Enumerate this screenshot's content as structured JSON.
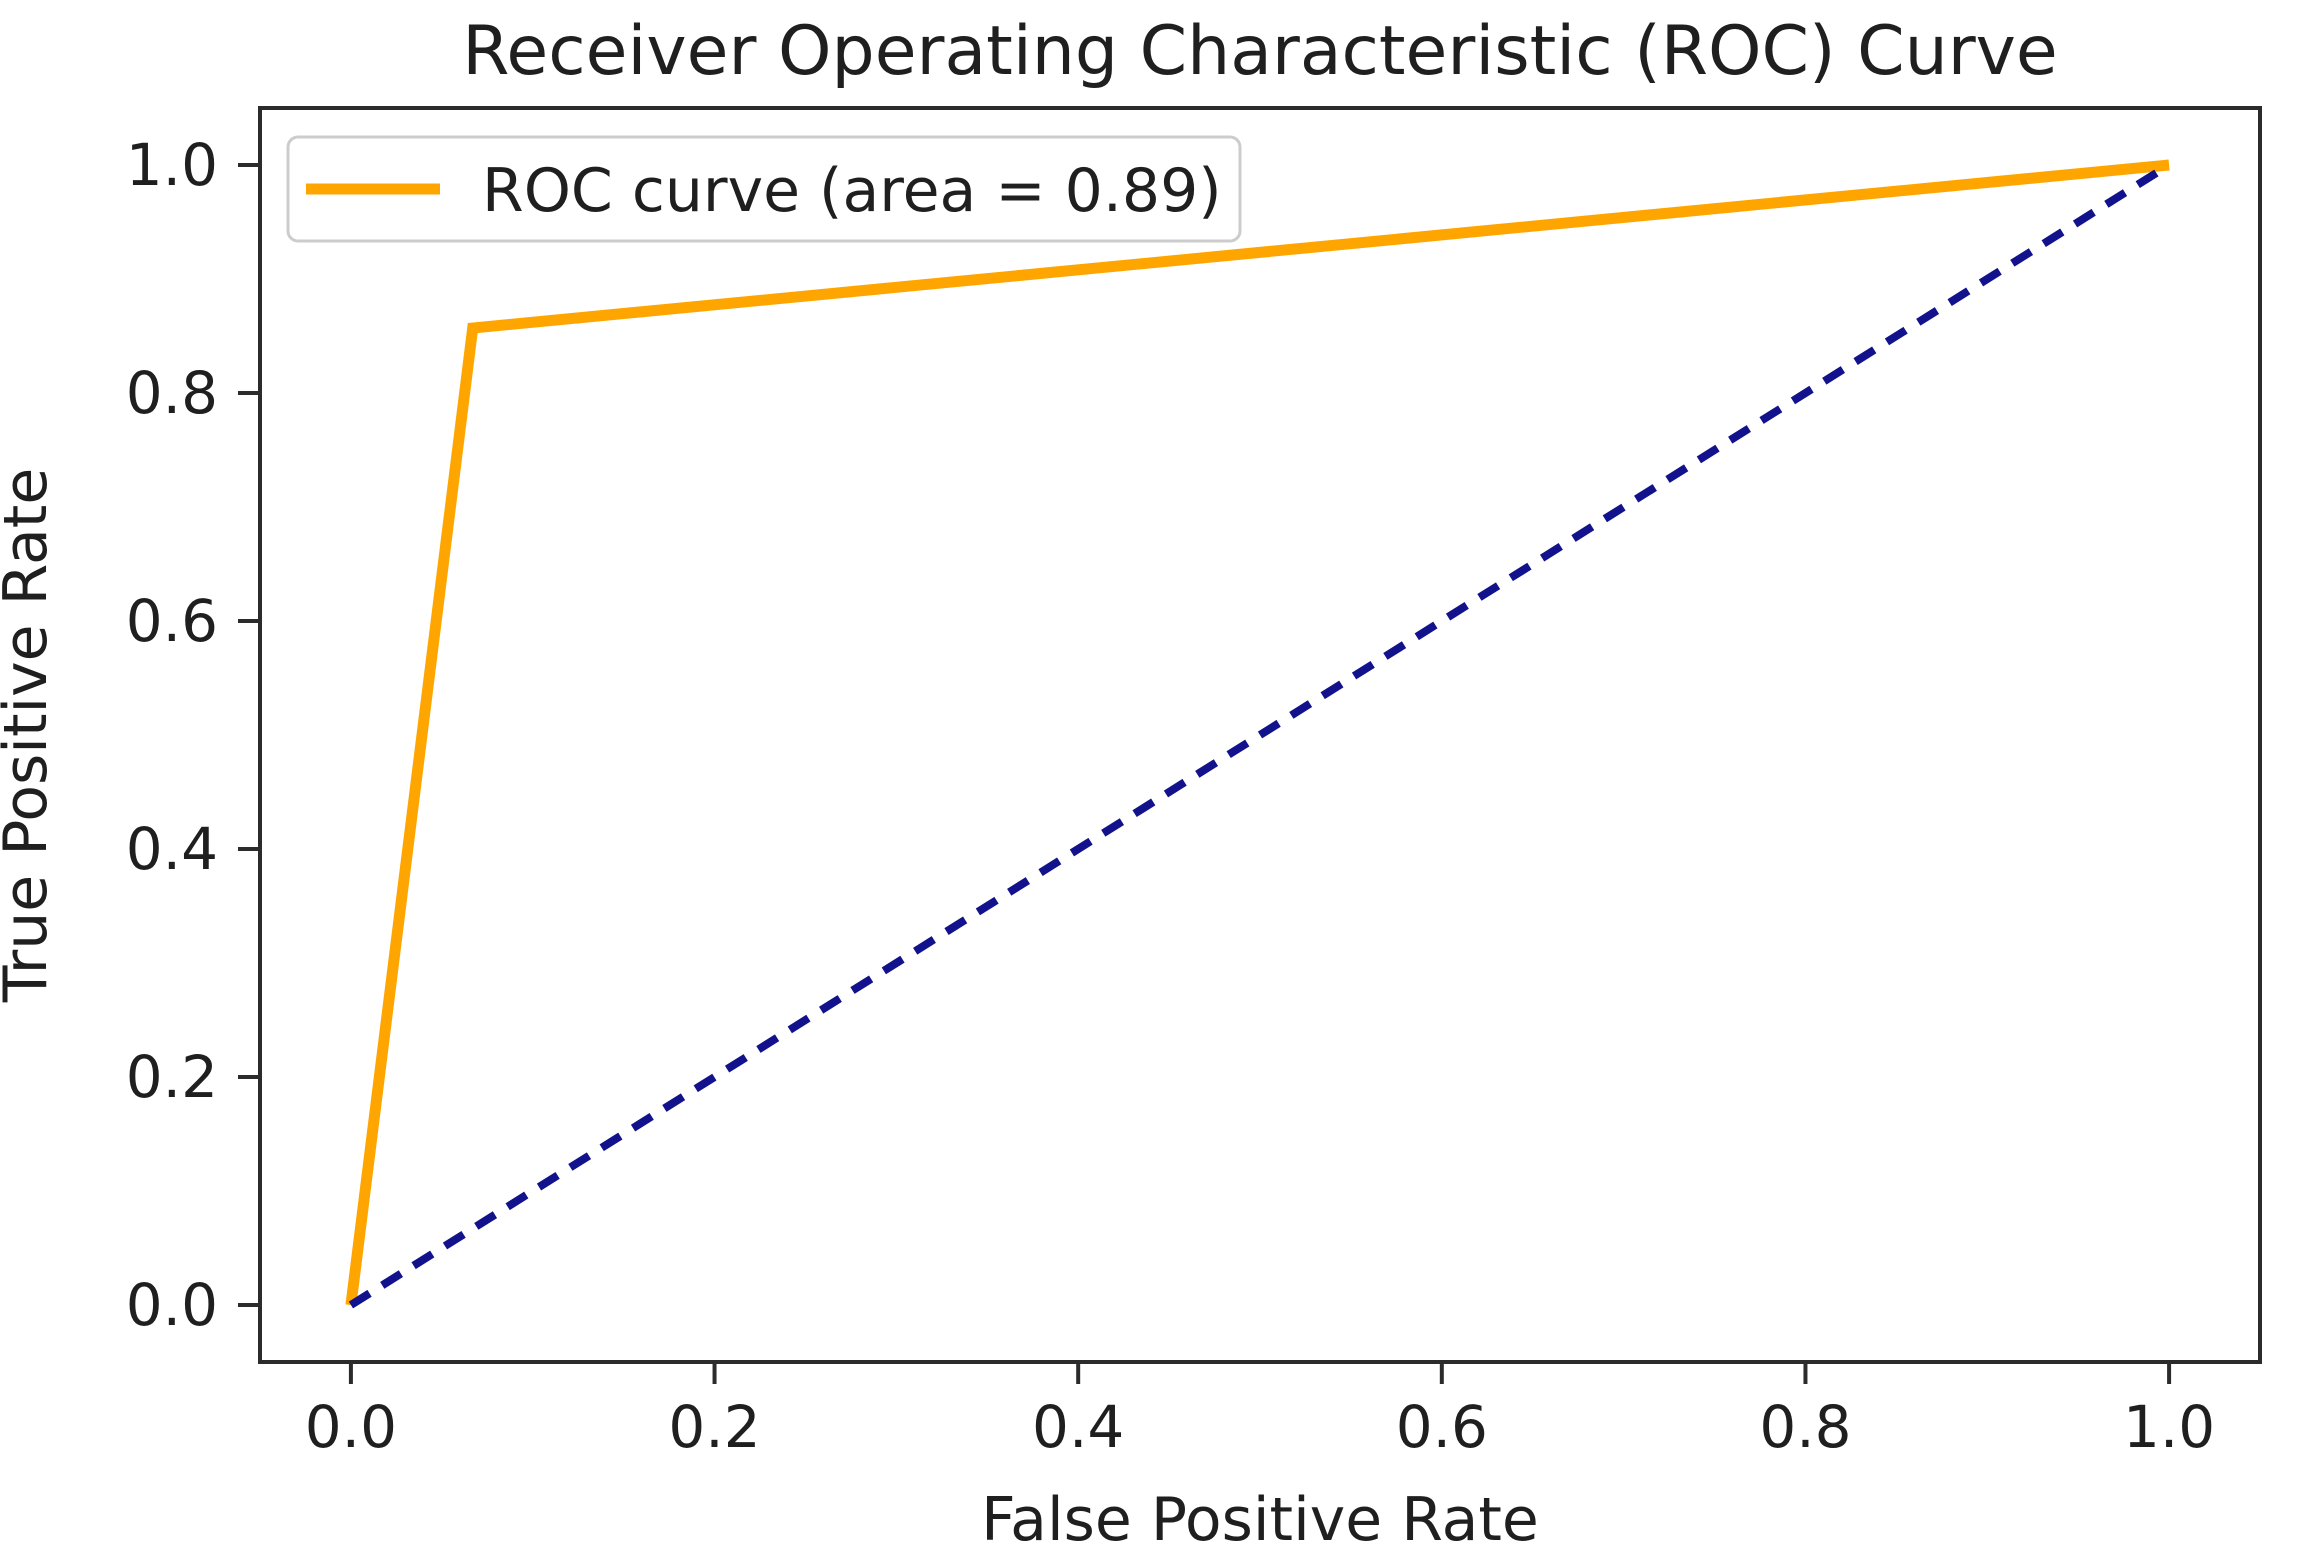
{
  "chart_data": {
    "type": "line",
    "title": "Receiver Operating Characteristic (ROC) Curve",
    "xlabel": "False Positive Rate",
    "ylabel": "True Positive Rate",
    "xlim": [
      -0.05,
      1.05
    ],
    "ylim": [
      -0.05,
      1.05
    ],
    "x_ticks": [
      0.0,
      0.2,
      0.4,
      0.6,
      0.8,
      1.0
    ],
    "y_ticks": [
      0.0,
      0.2,
      0.4,
      0.6,
      0.8,
      1.0
    ],
    "tick_decimals": 1,
    "grid": false,
    "series": [
      {
        "name": "ROC curve (area = 0.89)",
        "x": [
          0.0,
          0.067,
          1.0
        ],
        "y": [
          0.0,
          0.857,
          1.0
        ],
        "color": "#ffa500",
        "style": "solid",
        "width": 11,
        "in_legend": true
      },
      {
        "name": "chance diagonal",
        "x": [
          0.0,
          1.0
        ],
        "y": [
          0.0,
          1.0
        ],
        "color": "#12128c",
        "style": "dashed",
        "width": 8,
        "in_legend": false
      }
    ],
    "legend": {
      "position": "upper left",
      "entries": [
        {
          "label": "ROC curve (area = 0.89)",
          "color": "#ffa500"
        }
      ]
    }
  },
  "colors": {
    "text": "#1f1f1f",
    "axis": "#2b2b2b",
    "legend_border": "#cccccc",
    "legend_background": "#ffffff",
    "roc_curve": "#ffa500",
    "diagonal": "#12128c",
    "background": "#ffffff"
  }
}
